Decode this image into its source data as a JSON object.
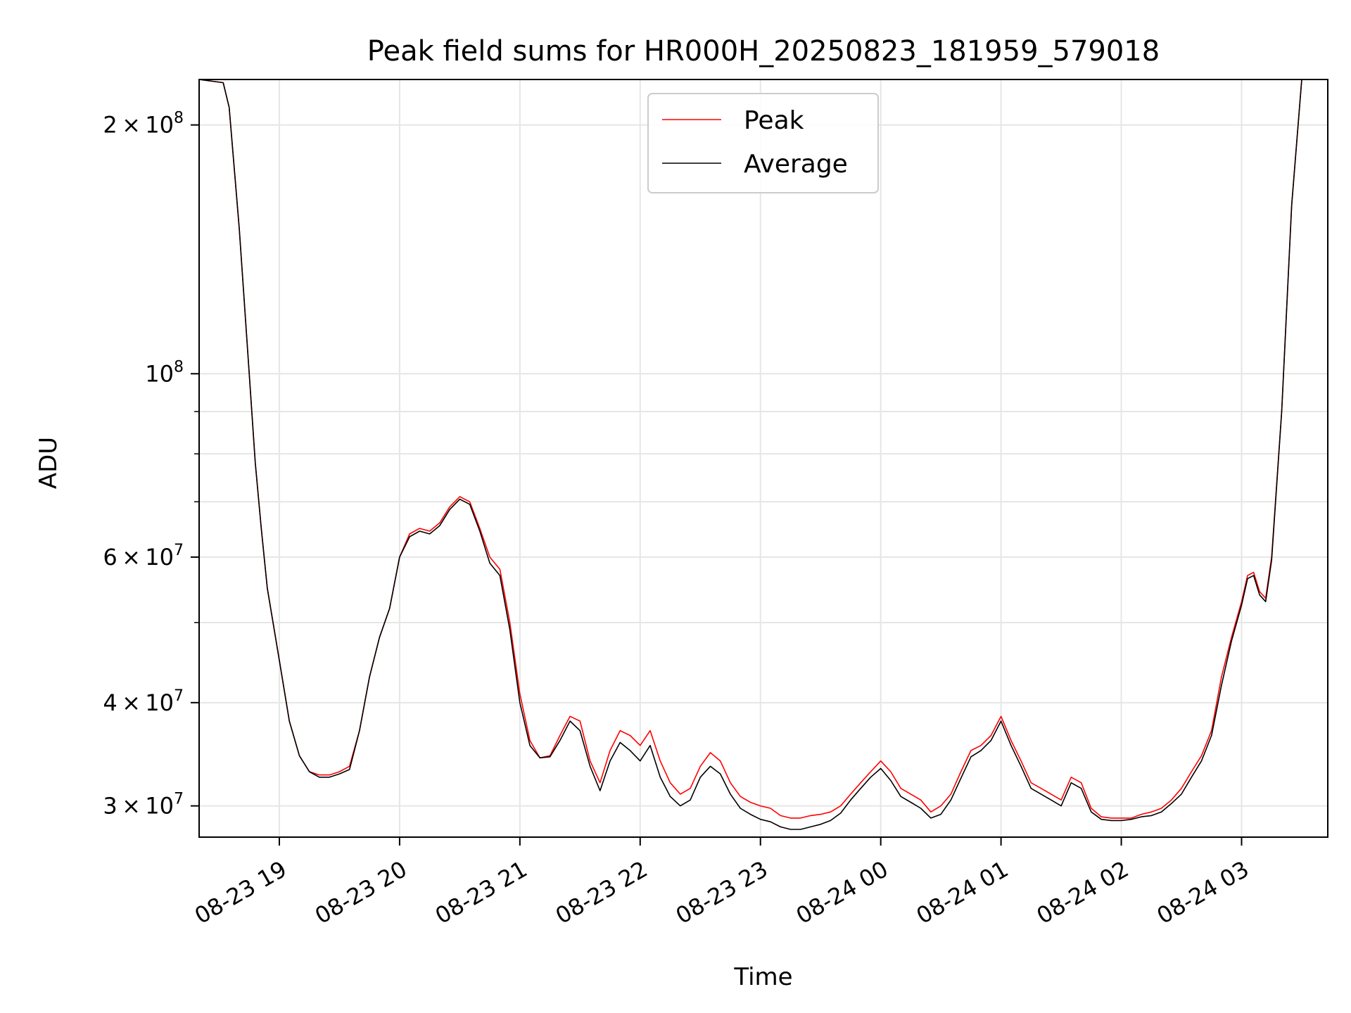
{
  "chart_data": {
    "type": "line",
    "title": "Peak field sums for HR000H_20250823_181959_579018",
    "xlabel": "Time",
    "ylabel": "ADU",
    "y_scale": "log",
    "ylim": [
      27500000,
      227000000
    ],
    "xlim": [
      "08-23 18:20",
      "08-24 03:43"
    ],
    "grid": true,
    "legend_position": "upper center",
    "x_ticks": [
      {
        "t": "08-23 19:00",
        "label": "08-23 19"
      },
      {
        "t": "08-23 20:00",
        "label": "08-23 20"
      },
      {
        "t": "08-23 21:00",
        "label": "08-23 21"
      },
      {
        "t": "08-23 22:00",
        "label": "08-23 22"
      },
      {
        "t": "08-23 23:00",
        "label": "08-23 23"
      },
      {
        "t": "08-24 00:00",
        "label": "08-24 00"
      },
      {
        "t": "08-24 01:00",
        "label": "08-24 01"
      },
      {
        "t": "08-24 02:00",
        "label": "08-24 02"
      },
      {
        "t": "08-24 03:00",
        "label": "08-24 03"
      }
    ],
    "y_ticks_major": [
      {
        "value": 30000000,
        "mant": "3",
        "exp": "7"
      },
      {
        "value": 40000000,
        "mant": "4",
        "exp": "7"
      },
      {
        "value": 60000000,
        "mant": "6",
        "exp": "7"
      },
      {
        "value": 100000000,
        "mant": "",
        "exp": "8"
      },
      {
        "value": 200000000,
        "mant": "2",
        "exp": "8"
      }
    ],
    "y_ticks_minor": [
      50000000,
      70000000,
      80000000,
      90000000
    ],
    "series": [
      {
        "name": "Peak",
        "color": "#ff0000",
        "x": [
          "08-23 18:20",
          "08-23 18:32",
          "08-23 18:35",
          "08-23 18:40",
          "08-23 18:45",
          "08-23 18:48",
          "08-23 18:51",
          "08-23 18:54",
          "08-23 19:00",
          "08-23 19:05",
          "08-23 19:10",
          "08-23 19:15",
          "08-23 19:20",
          "08-23 19:25",
          "08-23 19:30",
          "08-23 19:35",
          "08-23 19:40",
          "08-23 19:45",
          "08-23 19:50",
          "08-23 19:55",
          "08-23 20:00",
          "08-23 20:05",
          "08-23 20:10",
          "08-23 20:15",
          "08-23 20:20",
          "08-23 20:25",
          "08-23 20:30",
          "08-23 20:35",
          "08-23 20:40",
          "08-23 20:45",
          "08-23 20:50",
          "08-23 20:55",
          "08-23 21:00",
          "08-23 21:05",
          "08-23 21:10",
          "08-23 21:15",
          "08-23 21:20",
          "08-23 21:25",
          "08-23 21:30",
          "08-23 21:35",
          "08-23 21:40",
          "08-23 21:45",
          "08-23 21:50",
          "08-23 21:55",
          "08-23 22:00",
          "08-23 22:05",
          "08-23 22:10",
          "08-23 22:15",
          "08-23 22:20",
          "08-23 22:25",
          "08-23 22:30",
          "08-23 22:35",
          "08-23 22:40",
          "08-23 22:45",
          "08-23 22:50",
          "08-23 22:55",
          "08-23 23:00",
          "08-23 23:05",
          "08-23 23:10",
          "08-23 23:15",
          "08-23 23:20",
          "08-23 23:25",
          "08-23 23:30",
          "08-23 23:35",
          "08-23 23:40",
          "08-23 23:45",
          "08-23 23:50",
          "08-23 23:55",
          "08-24 00:00",
          "08-24 00:05",
          "08-24 00:10",
          "08-24 00:15",
          "08-24 00:20",
          "08-24 00:25",
          "08-24 00:30",
          "08-24 00:35",
          "08-24 00:40",
          "08-24 00:45",
          "08-24 00:50",
          "08-24 00:55",
          "08-24 01:00",
          "08-24 01:05",
          "08-24 01:10",
          "08-24 01:15",
          "08-24 01:20",
          "08-24 01:25",
          "08-24 01:30",
          "08-24 01:35",
          "08-24 01:40",
          "08-24 01:45",
          "08-24 01:50",
          "08-24 01:55",
          "08-24 02:00",
          "08-24 02:05",
          "08-24 02:10",
          "08-24 02:15",
          "08-24 02:20",
          "08-24 02:25",
          "08-24 02:30",
          "08-24 02:35",
          "08-24 02:40",
          "08-24 02:45",
          "08-24 02:50",
          "08-24 02:55",
          "08-24 03:00",
          "08-24 03:03",
          "08-24 03:06",
          "08-24 03:09",
          "08-24 03:12",
          "08-24 03:15",
          "08-24 03:20",
          "08-24 03:25",
          "08-24 03:30"
        ],
        "values": [
          227000000,
          225000000,
          210000000,
          150000000,
          100000000,
          78000000,
          65000000,
          55000000,
          45000000,
          38000000,
          34500000,
          33000000,
          32700000,
          32700000,
          33000000,
          33500000,
          37000000,
          43000000,
          48000000,
          52000000,
          60000000,
          64000000,
          65000000,
          64500000,
          66000000,
          69000000,
          71000000,
          70000000,
          65000000,
          60000000,
          58000000,
          50000000,
          41000000,
          36000000,
          34300000,
          34500000,
          36500000,
          38500000,
          38000000,
          34000000,
          32000000,
          35000000,
          37000000,
          36500000,
          35500000,
          37000000,
          34000000,
          32000000,
          31000000,
          31500000,
          33500000,
          34800000,
          34000000,
          32000000,
          30800000,
          30300000,
          30000000,
          29800000,
          29200000,
          29000000,
          29000000,
          29200000,
          29300000,
          29500000,
          30000000,
          31000000,
          32000000,
          33000000,
          34000000,
          33000000,
          31500000,
          31000000,
          30500000,
          29500000,
          30000000,
          31000000,
          33000000,
          35000000,
          35500000,
          36500000,
          38500000,
          36000000,
          34000000,
          32000000,
          31500000,
          31000000,
          30500000,
          32500000,
          32000000,
          29800000,
          29100000,
          29000000,
          29000000,
          29000000,
          29300000,
          29500000,
          29800000,
          30500000,
          31500000,
          33000000,
          34500000,
          37000000,
          43000000,
          48000000,
          53000000,
          57000000,
          57500000,
          54500000,
          53500000,
          60000000,
          90000000,
          160000000,
          227000000
        ]
      },
      {
        "name": "Average",
        "color": "#000000",
        "x": [
          "08-23 18:20",
          "08-23 18:32",
          "08-23 18:35",
          "08-23 18:40",
          "08-23 18:45",
          "08-23 18:48",
          "08-23 18:51",
          "08-23 18:54",
          "08-23 19:00",
          "08-23 19:05",
          "08-23 19:10",
          "08-23 19:15",
          "08-23 19:20",
          "08-23 19:25",
          "08-23 19:30",
          "08-23 19:35",
          "08-23 19:40",
          "08-23 19:45",
          "08-23 19:50",
          "08-23 19:55",
          "08-23 20:00",
          "08-23 20:05",
          "08-23 20:10",
          "08-23 20:15",
          "08-23 20:20",
          "08-23 20:25",
          "08-23 20:30",
          "08-23 20:35",
          "08-23 20:40",
          "08-23 20:45",
          "08-23 20:50",
          "08-23 20:55",
          "08-23 21:00",
          "08-23 21:05",
          "08-23 21:10",
          "08-23 21:15",
          "08-23 21:20",
          "08-23 21:25",
          "08-23 21:30",
          "08-23 21:35",
          "08-23 21:40",
          "08-23 21:45",
          "08-23 21:50",
          "08-23 21:55",
          "08-23 22:00",
          "08-23 22:05",
          "08-23 22:10",
          "08-23 22:15",
          "08-23 22:20",
          "08-23 22:25",
          "08-23 22:30",
          "08-23 22:35",
          "08-23 22:40",
          "08-23 22:45",
          "08-23 22:50",
          "08-23 22:55",
          "08-23 23:00",
          "08-23 23:05",
          "08-23 23:10",
          "08-23 23:15",
          "08-23 23:20",
          "08-23 23:25",
          "08-23 23:30",
          "08-23 23:35",
          "08-23 23:40",
          "08-23 23:45",
          "08-23 23:50",
          "08-23 23:55",
          "08-24 00:00",
          "08-24 00:05",
          "08-24 00:10",
          "08-24 00:15",
          "08-24 00:20",
          "08-24 00:25",
          "08-24 00:30",
          "08-24 00:35",
          "08-24 00:40",
          "08-24 00:45",
          "08-24 00:50",
          "08-24 00:55",
          "08-24 01:00",
          "08-24 01:05",
          "08-24 01:10",
          "08-24 01:15",
          "08-24 01:20",
          "08-24 01:25",
          "08-24 01:30",
          "08-24 01:35",
          "08-24 01:40",
          "08-24 01:45",
          "08-24 01:50",
          "08-24 01:55",
          "08-24 02:00",
          "08-24 02:05",
          "08-24 02:10",
          "08-24 02:15",
          "08-24 02:20",
          "08-24 02:25",
          "08-24 02:30",
          "08-24 02:35",
          "08-24 02:40",
          "08-24 02:45",
          "08-24 02:50",
          "08-24 02:55",
          "08-24 03:00",
          "08-24 03:03",
          "08-24 03:06",
          "08-24 03:09",
          "08-24 03:12",
          "08-24 03:15",
          "08-24 03:20",
          "08-24 03:25",
          "08-24 03:30"
        ],
        "values": [
          227000000,
          225000000,
          210000000,
          150000000,
          100000000,
          78000000,
          65000000,
          55000000,
          45000000,
          38000000,
          34500000,
          33000000,
          32500000,
          32500000,
          32800000,
          33200000,
          37000000,
          43000000,
          48000000,
          52000000,
          60000000,
          63500000,
          64500000,
          64000000,
          65500000,
          68500000,
          70500000,
          69500000,
          64500000,
          59000000,
          57000000,
          49000000,
          40000000,
          35500000,
          34300000,
          34400000,
          36000000,
          38000000,
          37000000,
          33500000,
          31300000,
          34000000,
          35800000,
          35000000,
          34000000,
          35500000,
          32500000,
          30800000,
          30000000,
          30500000,
          32500000,
          33500000,
          32800000,
          31000000,
          29800000,
          29300000,
          28900000,
          28700000,
          28300000,
          28100000,
          28100000,
          28300000,
          28500000,
          28800000,
          29400000,
          30500000,
          31500000,
          32500000,
          33300000,
          32200000,
          30800000,
          30300000,
          29800000,
          29000000,
          29300000,
          30500000,
          32400000,
          34400000,
          35000000,
          36000000,
          38000000,
          35500000,
          33500000,
          31500000,
          31000000,
          30500000,
          30000000,
          32000000,
          31500000,
          29500000,
          28900000,
          28800000,
          28800000,
          28900000,
          29100000,
          29200000,
          29500000,
          30200000,
          31000000,
          32500000,
          34000000,
          36500000,
          42000000,
          47500000,
          52500000,
          56500000,
          57000000,
          54000000,
          53000000,
          59500000,
          90000000,
          160000000,
          227000000
        ]
      }
    ]
  }
}
